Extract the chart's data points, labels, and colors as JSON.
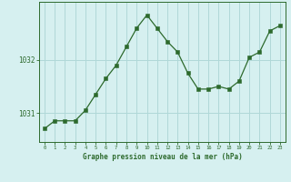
{
  "x": [
    0,
    1,
    2,
    3,
    4,
    5,
    6,
    7,
    8,
    9,
    10,
    11,
    12,
    13,
    14,
    15,
    16,
    17,
    18,
    19,
    20,
    21,
    22,
    23
  ],
  "y": [
    1030.7,
    1030.85,
    1030.85,
    1030.85,
    1031.05,
    1031.35,
    1031.65,
    1031.9,
    1032.25,
    1032.6,
    1032.85,
    1032.6,
    1032.35,
    1032.15,
    1031.75,
    1031.45,
    1031.45,
    1031.5,
    1031.45,
    1031.6,
    1032.05,
    1032.15,
    1032.55,
    1032.65
  ],
  "line_color": "#2d6a2d",
  "marker_color": "#2d6a2d",
  "bg_color": "#d6f0f0",
  "grid_color": "#b0d8d8",
  "axis_color": "#2d6a2d",
  "label_color": "#2d6a2d",
  "xlabel": "Graphe pression niveau de la mer (hPa)",
  "yticks": [
    1031,
    1032
  ],
  "ylim": [
    1030.45,
    1033.1
  ],
  "xlim": [
    -0.5,
    23.5
  ],
  "title": ""
}
